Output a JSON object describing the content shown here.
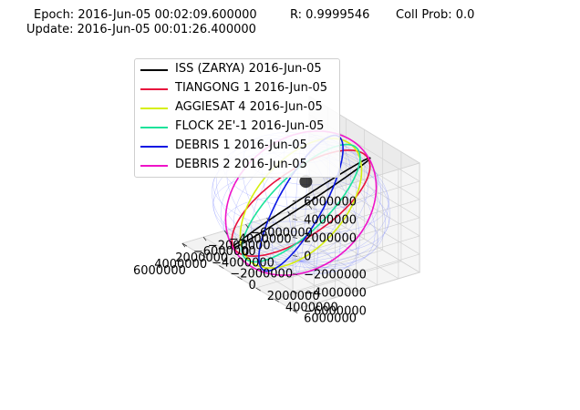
{
  "header": {
    "epoch": "Epoch: 2016-Jun-05 00:02:09.600000",
    "r_value": "R: 0.9999546",
    "coll_prob": "Coll Prob: 0.0",
    "update": "Update: 2016-Jun-05 00:01:26.400000"
  },
  "chart_data": {
    "type": "line",
    "projection": "3d",
    "grid": true,
    "legend_placement": "upper-left",
    "xlim": [
      -6000000,
      6000000
    ],
    "ylim": [
      -6000000,
      6000000
    ],
    "zlim": [
      -6000000,
      6000000
    ],
    "x_ticks": [
      "−6000000",
      "−4000000",
      "−2000000",
      "0",
      "2000000",
      "4000000",
      "6000000"
    ],
    "y_ticks": [
      "−6000000",
      "−4000000",
      "−2000000",
      "0",
      "2000000",
      "4000000",
      "6000000"
    ],
    "z_ticks": [
      "−6000000",
      "−4000000",
      "−2000000",
      "0",
      "2000000",
      "4000000",
      "6000000"
    ],
    "earth_sphere_radius": 6371000,
    "collision_point": [
      1800000,
      2600000,
      4600000
    ],
    "series": [
      {
        "name": "ISS (ZARYA) 2016-Jun-05",
        "color": "#000000",
        "radius": 6780000,
        "raan_deg": 20,
        "inclination_deg": 51.6
      },
      {
        "name": "TIANGONG 1 2016-Jun-05",
        "color": "#e8113d",
        "radius": 6700000,
        "raan_deg": 45,
        "inclination_deg": 42.8
      },
      {
        "name": "AGGIESAT 4 2016-Jun-05",
        "color": "#d6ef0e",
        "radius": 6770000,
        "raan_deg": 60,
        "inclination_deg": 51.6
      },
      {
        "name": "FLOCK 2E'-1 2016-Jun-05",
        "color": "#1be39a",
        "radius": 6770000,
        "raan_deg": 45,
        "inclination_deg": 51.6
      },
      {
        "name": "DEBRIS 1 2016-Jun-05",
        "color": "#0a17e3",
        "radius": 6900000,
        "raan_deg": 25,
        "inclination_deg": 80
      },
      {
        "name": "DEBRIS 2 2016-Jun-05",
        "color": "#ef13c8",
        "radius": 7100000,
        "raan_deg": 0,
        "inclination_deg": 96
      }
    ]
  }
}
